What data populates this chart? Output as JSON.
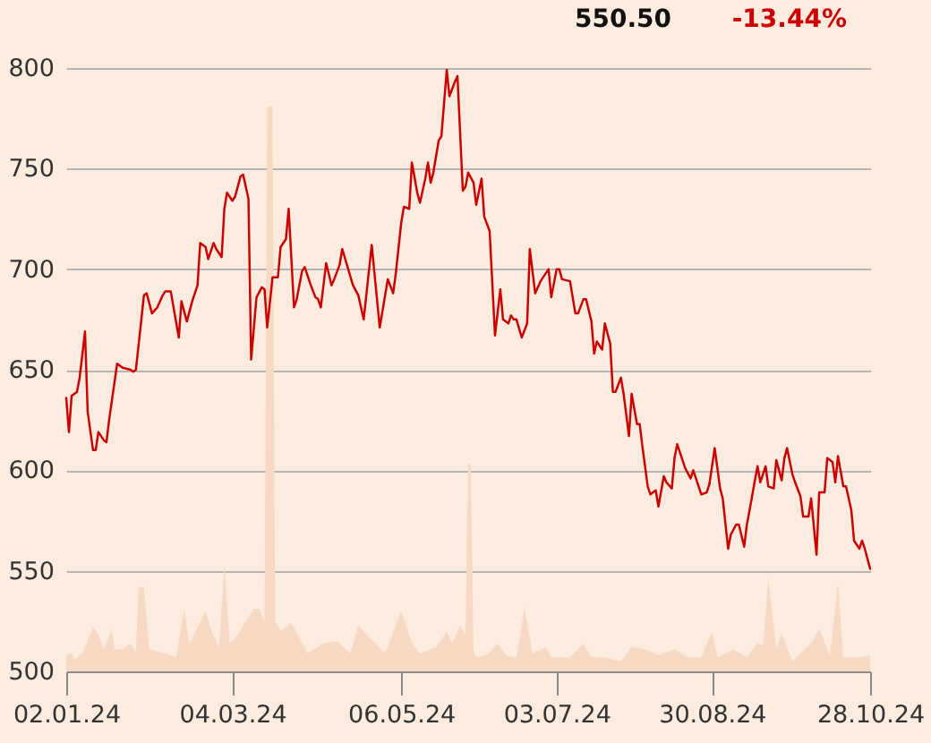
{
  "chart_data": {
    "type": "line",
    "annotations": [
      "550.50",
      "-13.44%"
    ],
    "xlim": [
      "2024-01-02",
      "2024-10-28"
    ],
    "xticks": [
      {
        "value": "2024-01-02",
        "label": "02.01.24"
      },
      {
        "value": "2024-03-04",
        "label": "04.03.24"
      },
      {
        "value": "2024-05-06",
        "label": "06.05.24"
      },
      {
        "value": "2024-07-03",
        "label": "03.07.24"
      },
      {
        "value": "2024-08-30",
        "label": "30.08.24"
      },
      {
        "value": "2024-10-28",
        "label": "28.10.24"
      }
    ],
    "ylim": [
      500,
      800
    ],
    "yticks": [
      500,
      550,
      600,
      650,
      700,
      750,
      800
    ],
    "grid": "y",
    "series": [
      {
        "type": "area",
        "color": "#f8dac4",
        "x": [
          "2024-01-02",
          "2024-01-04",
          "2024-01-05",
          "2024-01-08",
          "2024-01-12",
          "2024-01-14",
          "2024-01-16",
          "2024-01-19",
          "2024-01-20",
          "2024-01-23",
          "2024-01-26",
          "2024-01-28",
          "2024-01-29",
          "2024-01-31",
          "2024-02-02",
          "2024-02-08",
          "2024-02-12",
          "2024-02-15",
          "2024-02-17",
          "2024-02-20",
          "2024-02-23",
          "2024-02-25",
          "2024-02-28",
          "2024-03-01",
          "2024-03-03",
          "2024-03-06",
          "2024-03-08",
          "2024-03-12",
          "2024-03-14",
          "2024-03-16",
          "2024-03-17",
          "2024-03-19",
          "2024-03-20",
          "2024-03-22",
          "2024-03-26",
          "2024-03-29",
          "2024-04-01",
          "2024-04-07",
          "2024-04-12",
          "2024-04-17",
          "2024-04-20",
          "2024-04-24",
          "2024-04-30",
          "2024-05-06",
          "2024-05-10",
          "2024-05-13",
          "2024-05-19",
          "2024-05-23",
          "2024-05-25",
          "2024-05-28",
          "2024-05-30",
          "2024-05-31",
          "2024-06-01",
          "2024-06-02",
          "2024-06-03",
          "2024-06-07",
          "2024-06-11",
          "2024-06-14",
          "2024-06-18",
          "2024-06-21",
          "2024-06-24",
          "2024-06-29",
          "2024-07-01",
          "2024-07-08",
          "2024-07-13",
          "2024-07-16",
          "2024-07-21",
          "2024-07-27",
          "2024-07-31",
          "2024-08-05",
          "2024-08-10",
          "2024-08-16",
          "2024-08-21",
          "2024-08-26",
          "2024-08-30",
          "2024-09-01",
          "2024-09-07",
          "2024-09-12",
          "2024-09-16",
          "2024-09-18",
          "2024-09-20",
          "2024-09-23",
          "2024-09-25",
          "2024-09-29",
          "2024-10-06",
          "2024-10-09",
          "2024-10-13",
          "2024-10-16",
          "2024-10-18",
          "2024-10-24",
          "2024-10-28"
        ],
        "values": [
          508,
          509,
          506,
          509,
          522,
          518,
          511,
          521,
          511,
          511,
          514,
          509,
          542,
          542,
          511,
          509,
          507,
          531,
          514,
          522,
          530,
          521,
          512,
          553,
          514,
          518,
          523,
          531,
          531,
          525,
          781,
          781,
          525,
          520,
          524,
          517,
          509,
          514,
          515,
          509,
          523,
          517,
          509,
          530,
          514,
          509,
          512,
          520,
          514,
          523,
          518,
          603,
          603,
          510,
          507,
          508,
          514,
          508,
          507,
          532,
          509,
          512,
          507,
          507,
          514,
          507,
          507,
          505,
          512,
          511,
          508,
          511,
          507,
          507,
          520,
          507,
          511,
          507,
          514,
          513,
          546,
          511,
          519,
          505,
          514,
          521,
          508,
          545,
          507,
          507,
          508
        ]
      },
      {
        "type": "line",
        "color": "#cc0000",
        "x": [
          "2024-01-02",
          "2024-01-03",
          "2024-01-04",
          "2024-01-06",
          "2024-01-07",
          "2024-01-09",
          "2024-01-10",
          "2024-01-12",
          "2024-01-13",
          "2024-01-14",
          "2024-01-16",
          "2024-01-17",
          "2024-01-18",
          "2024-01-21",
          "2024-01-23",
          "2024-01-26",
          "2024-01-27",
          "2024-01-28",
          "2024-01-31",
          "2024-02-01",
          "2024-02-03",
          "2024-02-05",
          "2024-02-07",
          "2024-02-08",
          "2024-02-10",
          "2024-02-13",
          "2024-02-14",
          "2024-02-16",
          "2024-02-18",
          "2024-02-20",
          "2024-02-21",
          "2024-02-23",
          "2024-02-24",
          "2024-02-26",
          "2024-02-27",
          "2024-02-29",
          "2024-03-01",
          "2024-03-02",
          "2024-03-04",
          "2024-03-05",
          "2024-03-07",
          "2024-03-08",
          "2024-03-10",
          "2024-03-11",
          "2024-03-13",
          "2024-03-15",
          "2024-03-16",
          "2024-03-17",
          "2024-03-19",
          "2024-03-21",
          "2024-03-22",
          "2024-03-24",
          "2024-03-25",
          "2024-03-27",
          "2024-03-28",
          "2024-03-30",
          "2024-03-31",
          "2024-04-02",
          "2024-04-04",
          "2024-04-05",
          "2024-04-06",
          "2024-04-08",
          "2024-04-10",
          "2024-04-11",
          "2024-04-13",
          "2024-04-14",
          "2024-04-16",
          "2024-04-18",
          "2024-04-20",
          "2024-04-22",
          "2024-04-25",
          "2024-04-28",
          "2024-05-01",
          "2024-05-03",
          "2024-05-04",
          "2024-05-06",
          "2024-05-07",
          "2024-05-09",
          "2024-05-10",
          "2024-05-12",
          "2024-05-13",
          "2024-05-15",
          "2024-05-16",
          "2024-05-17",
          "2024-05-18",
          "2024-05-20",
          "2024-05-21",
          "2024-05-23",
          "2024-05-24",
          "2024-05-26",
          "2024-05-27",
          "2024-05-29",
          "2024-05-30",
          "2024-05-31",
          "2024-06-02",
          "2024-06-03",
          "2024-06-05",
          "2024-06-06",
          "2024-06-08",
          "2024-06-10",
          "2024-06-12",
          "2024-06-13",
          "2024-06-15",
          "2024-06-16",
          "2024-06-17",
          "2024-06-18",
          "2024-06-20",
          "2024-06-22",
          "2024-06-23",
          "2024-06-25",
          "2024-06-27",
          "2024-06-30",
          "2024-07-01",
          "2024-07-03",
          "2024-07-04",
          "2024-07-05",
          "2024-07-08",
          "2024-07-10",
          "2024-07-11",
          "2024-07-13",
          "2024-07-14",
          "2024-07-16",
          "2024-07-17",
          "2024-07-18",
          "2024-07-20",
          "2024-07-21",
          "2024-07-23",
          "2024-07-24",
          "2024-07-25",
          "2024-07-27",
          "2024-07-28",
          "2024-07-30",
          "2024-07-31",
          "2024-08-02",
          "2024-08-03",
          "2024-08-04",
          "2024-08-06",
          "2024-08-07",
          "2024-08-09",
          "2024-08-10",
          "2024-08-12",
          "2024-08-13",
          "2024-08-15",
          "2024-08-16",
          "2024-08-17",
          "2024-08-19",
          "2024-08-20",
          "2024-08-22",
          "2024-08-23",
          "2024-08-25",
          "2024-08-26",
          "2024-08-28",
          "2024-08-29",
          "2024-08-31",
          "2024-09-02",
          "2024-09-03",
          "2024-09-05",
          "2024-09-06",
          "2024-09-08",
          "2024-09-09",
          "2024-09-11",
          "2024-09-12",
          "2024-09-13",
          "2024-09-15",
          "2024-09-16",
          "2024-09-17",
          "2024-09-19",
          "2024-09-20",
          "2024-09-22",
          "2024-09-23",
          "2024-09-25",
          "2024-09-26",
          "2024-09-27",
          "2024-09-29",
          "2024-09-30",
          "2024-10-02",
          "2024-10-03",
          "2024-10-05",
          "2024-10-06",
          "2024-10-08",
          "2024-10-09",
          "2024-10-11",
          "2024-10-12",
          "2024-10-14",
          "2024-10-15",
          "2024-10-16",
          "2024-10-18",
          "2024-10-19",
          "2024-10-21",
          "2024-10-22",
          "2024-10-24",
          "2024-10-25",
          "2024-10-26",
          "2024-10-28"
        ],
        "values": [
          636,
          619,
          637,
          639,
          646,
          669,
          629,
          610,
          610,
          619,
          615,
          614,
          625,
          653,
          651,
          650,
          649,
          650,
          687,
          688,
          678,
          681,
          687,
          689,
          689,
          666,
          684,
          674,
          684,
          692,
          713,
          711,
          705,
          713,
          710,
          706,
          730,
          738,
          734,
          736,
          746,
          747,
          735,
          655,
          686,
          691,
          690,
          671,
          696,
          696,
          711,
          715,
          730,
          681,
          685,
          699,
          701,
          693,
          686,
          685,
          681,
          703,
          692,
          695,
          702,
          710,
          701,
          692,
          687,
          675,
          712,
          671,
          695,
          688,
          698,
          723,
          731,
          730,
          753,
          738,
          733,
          745,
          753,
          743,
          748,
          764,
          766,
          799,
          786,
          793,
          796,
          739,
          741,
          748,
          743,
          732,
          745,
          726,
          719,
          667,
          690,
          675,
          673,
          677,
          675,
          675,
          666,
          673,
          710,
          688,
          694,
          700,
          686,
          700,
          700,
          695,
          694,
          678,
          678,
          685,
          685,
          674,
          658,
          664,
          660,
          673,
          663,
          639,
          639,
          646,
          638,
          617,
          638,
          623,
          623,
          612,
          592,
          588,
          590,
          582,
          597,
          594,
          591,
          606,
          613,
          605,
          601,
          596,
          600,
          592,
          588,
          589,
          593,
          611,
          591,
          586,
          561,
          568,
          573,
          573,
          562,
          573,
          580,
          595,
          602,
          594,
          602,
          592,
          591,
          605,
          595,
          606,
          611,
          598,
          594,
          587,
          577,
          577,
          586,
          558,
          589,
          589,
          606,
          604,
          594,
          607,
          592,
          592,
          580,
          565,
          561,
          565,
          561,
          551
        ]
      }
    ]
  }
}
